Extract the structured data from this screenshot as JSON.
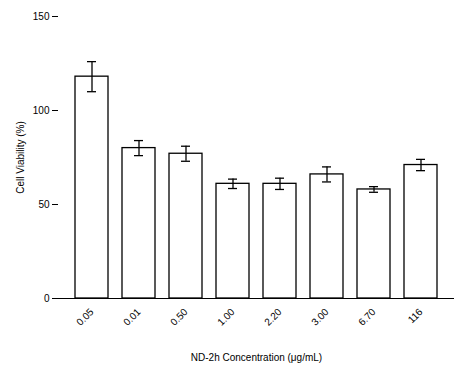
{
  "chart_data": {
    "type": "bar",
    "categories": [
      "0.05",
      "0.01",
      "0.50",
      "1.00",
      "2.20",
      "3.00",
      "6.70",
      "116"
    ],
    "values": [
      118,
      80,
      77,
      61,
      61,
      66,
      58,
      71
    ],
    "errors": [
      8,
      4,
      4,
      2.5,
      3,
      4,
      1.5,
      3
    ],
    "color": "#ffffff",
    "xlabel": "ND-2h Concentration (μg/mL)",
    "ylabel": "Cell Viability (%)",
    "ylim": [
      0,
      150
    ],
    "yticks": [
      0,
      50,
      100,
      150
    ],
    "grid": false
  }
}
